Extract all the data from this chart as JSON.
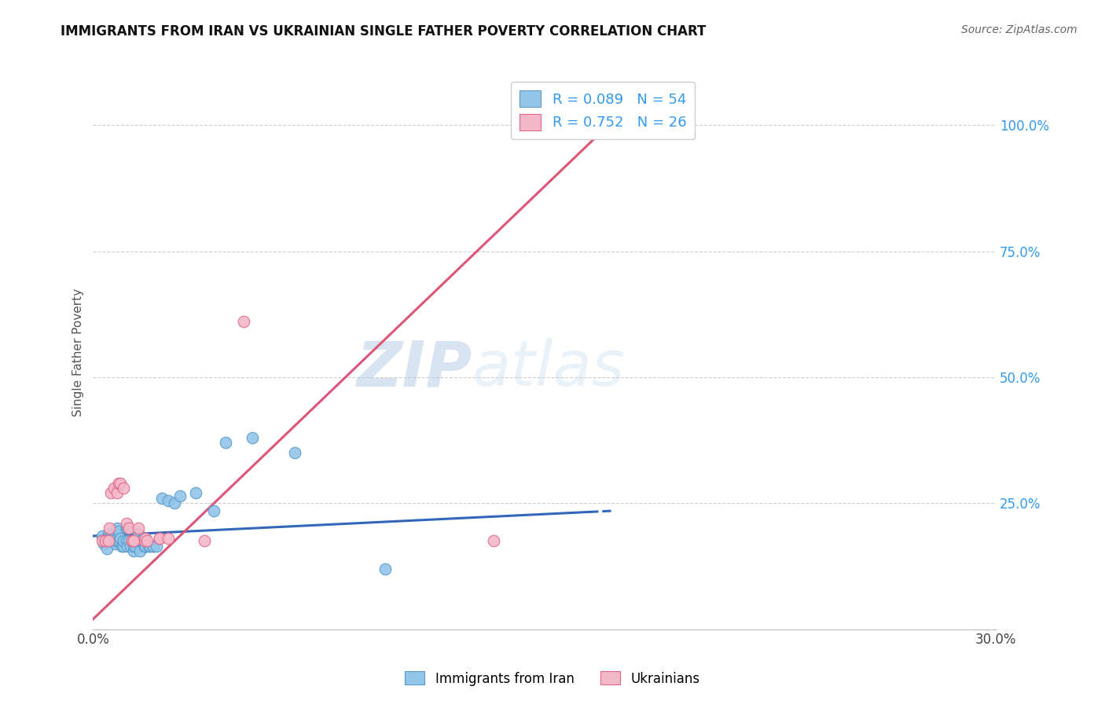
{
  "title": "IMMIGRANTS FROM IRAN VS UKRAINIAN SINGLE FATHER POVERTY CORRELATION CHART",
  "source": "Source: ZipAtlas.com",
  "ylabel": "Single Father Poverty",
  "legend_label1": "Immigrants from Iran",
  "legend_label2": "Ukrainians",
  "watermark": "ZIPatlas",
  "blue_color": "#92c5e8",
  "pink_color": "#f5b8c8",
  "blue_edge_color": "#5599cc",
  "pink_edge_color": "#dd6688",
  "blue_line_color": "#3366bb",
  "pink_line_color": "#dd5577",
  "title_color": "#111111",
  "source_color": "#666666",
  "right_axis_color": "#3399ee",
  "ytick_right_labels": [
    "100.0%",
    "75.0%",
    "50.0%",
    "25.0%"
  ],
  "ytick_right_values": [
    100.0,
    75.0,
    50.0,
    25.0
  ],
  "blue_dots": [
    [
      0.3,
      18.5
    ],
    [
      0.35,
      17.5
    ],
    [
      0.4,
      17.5
    ],
    [
      0.35,
      17.0
    ],
    [
      0.5,
      17.5
    ],
    [
      0.45,
      16.0
    ],
    [
      0.5,
      19.0
    ],
    [
      0.55,
      18.5
    ],
    [
      0.6,
      17.5
    ],
    [
      0.6,
      18.5
    ],
    [
      0.65,
      18.5
    ],
    [
      0.65,
      17.5
    ],
    [
      0.7,
      18.0
    ],
    [
      0.75,
      17.0
    ],
    [
      0.75,
      17.5
    ],
    [
      0.8,
      18.0
    ],
    [
      0.8,
      20.0
    ],
    [
      0.85,
      17.5
    ],
    [
      0.85,
      19.5
    ],
    [
      0.9,
      18.0
    ],
    [
      0.95,
      16.5
    ],
    [
      1.0,
      16.5
    ],
    [
      1.0,
      17.5
    ],
    [
      1.1,
      17.5
    ],
    [
      1.1,
      20.0
    ],
    [
      1.15,
      20.0
    ],
    [
      1.15,
      16.5
    ],
    [
      1.2,
      17.5
    ],
    [
      1.25,
      16.5
    ],
    [
      1.35,
      15.5
    ],
    [
      1.35,
      16.5
    ],
    [
      1.4,
      16.5
    ],
    [
      1.5,
      19.0
    ],
    [
      1.55,
      15.5
    ],
    [
      1.55,
      17.5
    ],
    [
      1.6,
      17.5
    ],
    [
      1.7,
      16.5
    ],
    [
      1.75,
      16.5
    ],
    [
      1.75,
      16.5
    ],
    [
      1.85,
      16.5
    ],
    [
      1.9,
      16.5
    ],
    [
      2.0,
      16.5
    ],
    [
      2.0,
      16.5
    ],
    [
      2.1,
      16.5
    ],
    [
      2.3,
      26.0
    ],
    [
      2.5,
      25.5
    ],
    [
      2.7,
      25.0
    ],
    [
      2.9,
      26.5
    ],
    [
      3.4,
      27.0
    ],
    [
      4.0,
      23.5
    ],
    [
      4.4,
      37.0
    ],
    [
      5.3,
      38.0
    ],
    [
      6.7,
      35.0
    ],
    [
      9.7,
      12.0
    ]
  ],
  "pink_dots": [
    [
      0.3,
      17.5
    ],
    [
      0.4,
      17.5
    ],
    [
      0.5,
      17.5
    ],
    [
      0.55,
      20.0
    ],
    [
      0.6,
      27.0
    ],
    [
      0.7,
      28.0
    ],
    [
      0.8,
      27.0
    ],
    [
      0.85,
      29.0
    ],
    [
      0.9,
      29.0
    ],
    [
      1.0,
      28.0
    ],
    [
      1.1,
      21.0
    ],
    [
      1.2,
      20.0
    ],
    [
      1.3,
      17.5
    ],
    [
      1.3,
      17.5
    ],
    [
      1.35,
      17.5
    ],
    [
      1.5,
      20.0
    ],
    [
      1.7,
      17.5
    ],
    [
      1.75,
      18.0
    ],
    [
      1.8,
      17.5
    ],
    [
      2.2,
      18.0
    ],
    [
      2.2,
      18.0
    ],
    [
      2.5,
      18.0
    ],
    [
      3.7,
      17.5
    ],
    [
      5.0,
      61.0
    ],
    [
      13.3,
      17.5
    ],
    [
      17.3,
      101.0
    ]
  ],
  "blue_trend_x": [
    0.0,
    17.3
  ],
  "blue_trend_y": [
    18.5,
    23.5
  ],
  "blue_trend_solid_end": 16.5,
  "blue_trend_dashed_start": 16.5,
  "pink_trend_x": [
    0.0,
    17.3
  ],
  "pink_trend_y": [
    2.0,
    101.0
  ],
  "xlim": [
    0.0,
    30.0
  ],
  "ylim": [
    0.0,
    110.0
  ],
  "xtick_positions": [
    0.0,
    5.0,
    10.0,
    15.0,
    20.0,
    25.0,
    30.0
  ],
  "xtick_labels": [
    "0.0%",
    "",
    "",
    "",
    "",
    "",
    "30.0%"
  ]
}
